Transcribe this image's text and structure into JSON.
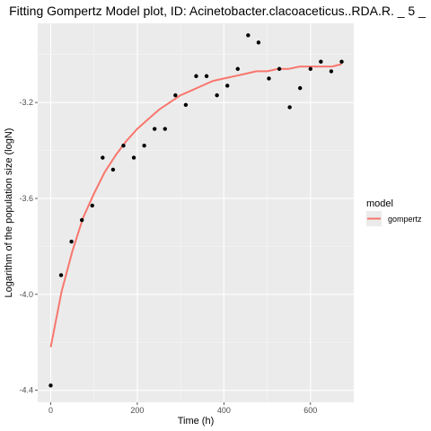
{
  "chart_data": {
    "type": "scatter",
    "title": "Fitting Gompertz Model plot, ID: Acinetobacter.clacoaceticus..RDA.R. _ 5 _",
    "xlabel": "Time (h)",
    "ylabel": "Logarithm of the population size (logN)",
    "xlim": [
      -30,
      700
    ],
    "ylim": [
      -4.45,
      -2.87
    ],
    "x_ticks": [
      0,
      200,
      400,
      600
    ],
    "y_ticks": [
      -4.4,
      -4.0,
      -3.6,
      -3.2
    ],
    "x_tick_labels": [
      "0",
      "200",
      "400",
      "600"
    ],
    "y_tick_labels": [
      "-4.4",
      "-4.0",
      "-3.6",
      "-3.2"
    ],
    "grid": true,
    "legend": {
      "title": "model",
      "position": "right",
      "entries": [
        {
          "label": "gompertz",
          "color": "#F8766D"
        }
      ]
    },
    "points": {
      "x": [
        0,
        24,
        48,
        72,
        96,
        120,
        144,
        168,
        192,
        216,
        240,
        264,
        288,
        312,
        336,
        360,
        384,
        408,
        432,
        456,
        480,
        504,
        528,
        552,
        576,
        600,
        624,
        648,
        672
      ],
      "y": [
        -4.38,
        -3.92,
        -3.78,
        -3.69,
        -3.63,
        -3.43,
        -3.48,
        -3.38,
        -3.43,
        -3.38,
        -3.31,
        -3.31,
        -3.17,
        -3.21,
        -3.09,
        -3.09,
        -3.17,
        -3.13,
        -3.06,
        -2.92,
        -2.95,
        -3.1,
        -3.06,
        -3.22,
        -3.14,
        -3.06,
        -3.03,
        -3.07,
        -3.03
      ]
    },
    "series": [
      {
        "name": "gompertz",
        "color": "#F8766D",
        "x": [
          0,
          25,
          50,
          75,
          100,
          125,
          150,
          175,
          200,
          225,
          250,
          275,
          300,
          325,
          350,
          375,
          400,
          425,
          450,
          475,
          500,
          525,
          550,
          575,
          600,
          625,
          650,
          672
        ],
        "y": [
          -4.22,
          -3.99,
          -3.82,
          -3.68,
          -3.58,
          -3.49,
          -3.42,
          -3.36,
          -3.31,
          -3.27,
          -3.23,
          -3.2,
          -3.17,
          -3.15,
          -3.13,
          -3.11,
          -3.1,
          -3.09,
          -3.08,
          -3.07,
          -3.07,
          -3.06,
          -3.06,
          -3.05,
          -3.05,
          -3.05,
          -3.05,
          -3.04
        ]
      }
    ],
    "colors": {
      "panel": "#EBEBEB",
      "grid_major": "#FFFFFF",
      "grid_minor": "#F5F5F5",
      "point": "#000000",
      "tick": "#333333",
      "legend_key_bg": "#EBEBEB"
    }
  }
}
